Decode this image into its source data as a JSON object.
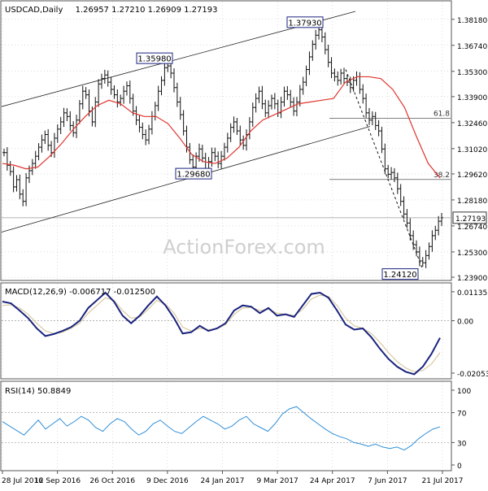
{
  "header": {
    "symbol": "USDCAD,Daily",
    "ohlc": "1.26957 1.27210 1.26909 1.27193"
  },
  "watermark": "ActionForex.com",
  "colors": {
    "price_bar": "#111111",
    "ma": "#e0342e",
    "channel": "#222222",
    "macd_line": "#1a237e",
    "signal_line": "#d8c9a0",
    "rsi_line": "#2f8fd8",
    "grid": "#bbbbbb",
    "current_price_line": "#9a9a9a",
    "box_border": "#1a237e"
  },
  "chart_data": [
    {
      "type": "ohlc",
      "title": "USDCAD,Daily",
      "ylim": [
        1.239,
        1.3862
      ],
      "x_ticks": [
        "28 Jul 2016",
        "12 Sep 2016",
        "26 Oct 2016",
        "9 Dec 2016",
        "24 Jan 2017",
        "9 Mar 2017",
        "24 Apr 2017",
        "7 Jun 2017",
        "21 Jul 2017"
      ],
      "y_ticks": [
        "1.38180",
        "1.36740",
        "1.35300",
        "1.33900",
        "1.32460",
        "1.31020",
        "1.29620",
        "1.28180",
        "1.26740",
        "1.25300",
        "1.23900"
      ],
      "current_price": "1.27193",
      "series": [
        {
          "name": "Close",
          "x_start": "28 Jul 2016",
          "x_end": "21 Jul 2017",
          "approx_closes": [
            1.308,
            1.301,
            1.2975,
            1.289,
            1.293,
            1.285,
            1.281,
            1.294,
            1.298,
            1.302,
            1.306,
            1.311,
            1.315,
            1.318,
            1.312,
            1.308,
            1.316,
            1.321,
            1.325,
            1.33,
            1.328,
            1.323,
            1.319,
            1.326,
            1.335,
            1.342,
            1.34,
            1.331,
            1.325,
            1.336,
            1.346,
            1.349,
            1.351,
            1.347,
            1.343,
            1.34,
            1.336,
            1.338,
            1.342,
            1.345,
            1.338,
            1.331,
            1.326,
            1.322,
            1.318,
            1.315,
            1.321,
            1.328,
            1.334,
            1.342,
            1.348,
            1.355,
            1.356,
            1.352,
            1.344,
            1.336,
            1.329,
            1.32,
            1.311,
            1.304,
            1.3,
            1.306,
            1.31,
            1.305,
            1.299,
            1.303,
            1.308,
            1.306,
            1.302,
            1.306,
            1.311,
            1.316,
            1.322,
            1.325,
            1.32,
            1.315,
            1.312,
            1.318,
            1.325,
            1.333,
            1.338,
            1.342,
            1.335,
            1.33,
            1.334,
            1.338,
            1.335,
            1.33,
            1.336,
            1.342,
            1.34,
            1.336,
            1.331,
            1.336,
            1.343,
            1.347,
            1.354,
            1.361,
            1.368,
            1.373,
            1.376,
            1.372,
            1.365,
            1.358,
            1.352,
            1.35,
            1.348,
            1.352,
            1.349,
            1.347,
            1.344,
            1.348,
            1.35,
            1.343,
            1.338,
            1.33,
            1.326,
            1.328,
            1.323,
            1.32,
            1.31,
            1.299,
            1.296,
            1.297,
            1.294,
            1.288,
            1.281,
            1.274,
            1.269,
            1.262,
            1.257,
            1.253,
            1.248,
            1.247,
            1.251,
            1.256,
            1.262,
            1.265,
            1.27,
            1.2719
          ]
        },
        {
          "name": "MA (red)",
          "approx_values": [
            1.302,
            1.301,
            1.299,
            1.3,
            1.306,
            1.313,
            1.321,
            1.328,
            1.334,
            1.337,
            1.335,
            1.33,
            1.328,
            1.328,
            1.324,
            1.316,
            1.307,
            1.303,
            1.302,
            1.305,
            1.311,
            1.32,
            1.326,
            1.329,
            1.332,
            1.335,
            1.336,
            1.337,
            1.338,
            1.347,
            1.35,
            1.35,
            1.349,
            1.343,
            1.333,
            1.317,
            1.302,
            1.294
          ]
        }
      ],
      "annotations": {
        "price_labels": [
          {
            "text": "1.37930",
            "x": "24 Apr 2017",
            "y": 1.3793
          },
          {
            "text": "1.35980",
            "x": "26 Oct 2016",
            "y": 1.3598
          },
          {
            "text": "1.29680",
            "x": "9 Dec 2016",
            "y": 1.2968
          },
          {
            "text": "1.24120",
            "x": "21 Jul 2017",
            "y": 1.2412
          }
        ],
        "fib_levels": [
          {
            "label": "61.8",
            "y": 1.3271
          },
          {
            "label": "38.2",
            "y": 1.2931
          }
        ]
      }
    },
    {
      "type": "line",
      "title": "MACD(12,26,9) -0.006717 -0.012500",
      "ylim": [
        -0.0215,
        0.0126
      ],
      "y_ticks": [
        "0.011355",
        "0.00",
        "-0.020531"
      ],
      "series": [
        {
          "name": "MACD",
          "approx_values": [
            0.0075,
            0.0068,
            0.004,
            0.001,
            -0.003,
            -0.006,
            -0.0052,
            -0.004,
            -0.0025,
            0.0,
            0.005,
            0.008,
            0.011,
            0.0075,
            0.002,
            -0.001,
            0.002,
            0.006,
            0.0095,
            0.006,
            0.001,
            -0.005,
            -0.0045,
            -0.002,
            -0.004,
            -0.003,
            -0.001,
            0.004,
            0.006,
            0.0055,
            0.003,
            0.005,
            0.002,
            0.0025,
            0.0015,
            0.006,
            0.0105,
            0.011,
            0.009,
            0.004,
            -0.0015,
            -0.0035,
            -0.003,
            -0.0065,
            -0.011,
            -0.015,
            -0.018,
            -0.02,
            -0.021,
            -0.018,
            -0.013,
            -0.0067
          ]
        },
        {
          "name": "Signal",
          "approx_values": [
            0.006,
            0.0062,
            0.005,
            0.0025,
            -0.001,
            -0.004,
            -0.005,
            -0.0045,
            -0.003,
            -0.001,
            0.003,
            0.006,
            0.009,
            0.008,
            0.004,
            0.001,
            0.0015,
            0.0045,
            0.008,
            0.0065,
            0.003,
            -0.0025,
            -0.004,
            -0.003,
            -0.0035,
            -0.0032,
            -0.0015,
            0.0025,
            0.005,
            0.0052,
            0.004,
            0.0045,
            0.003,
            0.0025,
            0.002,
            0.0045,
            0.0085,
            0.01,
            0.0095,
            0.006,
            0.001,
            -0.002,
            -0.003,
            -0.005,
            -0.0085,
            -0.0125,
            -0.016,
            -0.0185,
            -0.02,
            -0.0195,
            -0.017,
            -0.0125
          ]
        }
      ]
    },
    {
      "type": "line",
      "title": "RSI(14) 50.8849",
      "ylim": [
        0,
        100
      ],
      "y_ticks": [
        "100",
        "70",
        "30",
        "0"
      ],
      "reference_lines": [
        70,
        30
      ],
      "series": [
        {
          "name": "RSI",
          "approx_values": [
            58,
            52,
            46,
            40,
            50,
            60,
            48,
            55,
            62,
            52,
            58,
            65,
            60,
            50,
            45,
            55,
            62,
            58,
            48,
            40,
            45,
            55,
            60,
            52,
            45,
            42,
            50,
            58,
            65,
            60,
            55,
            48,
            52,
            60,
            65,
            55,
            50,
            45,
            55,
            68,
            75,
            78,
            70,
            62,
            55,
            48,
            42,
            38,
            35,
            30,
            28,
            25,
            28,
            24,
            22,
            24,
            20,
            26,
            35,
            42,
            48,
            51
          ]
        }
      ]
    }
  ]
}
